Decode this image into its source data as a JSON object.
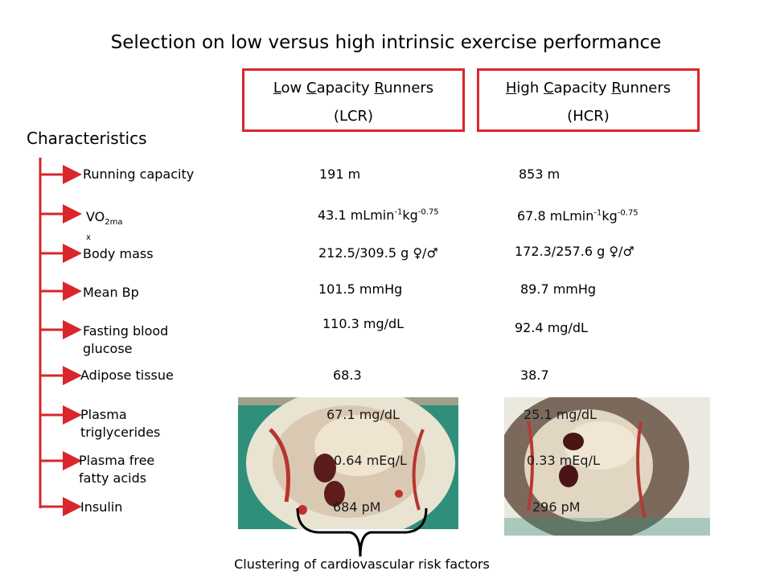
{
  "title": "Selection on low versus high intrinsic exercise performance",
  "lcr": {
    "l1a": "L",
    "l1b": "ow ",
    "l1c": "C",
    "l1d": "apacity ",
    "l1e": "R",
    "l1f": "unners",
    "abbr": "(LCR)"
  },
  "hcr": {
    "l1a": "H",
    "l1b": "igh ",
    "l1c": "C",
    "l1d": "apacity ",
    "l1e": "R",
    "l1f": "unners",
    "abbr": "(HCR)"
  },
  "characteristics_heading": "Characteristics",
  "rows": {
    "running": {
      "label": "Running capacity",
      "lcr": "191 m",
      "hcr": "853 m"
    },
    "vo2": {
      "label_main": "VO",
      "label_sub": "2ma",
      "label_x": "x",
      "lcr_main": "43.1 mLmin",
      "lcr_sup1": "-1",
      "lcr_mid": "kg",
      "lcr_sup2": "-0.75",
      "hcr_main": "67.8 mLmin",
      "hcr_sup1": "-1",
      "hcr_mid": "kg",
      "hcr_sup2": "-0.75"
    },
    "body_mass": {
      "label": "Body mass",
      "lcr": "212.5/309.5 g ♀/♂",
      "hcr": "172.3/257.6 g ♀/♂"
    },
    "bp": {
      "label": "Mean Bp",
      "lcr": "101.5 mmHg",
      "hcr": "89.7 mmHg"
    },
    "glucose": {
      "label": "Fasting blood glucose",
      "lcr": "110.3 mg/dL",
      "hcr": "92.4 mg/dL"
    },
    "adipose": {
      "label": "Adipose tissue",
      "lcr": "68.3",
      "hcr": "38.7"
    },
    "trig": {
      "label": "Plasma triglycerides",
      "lcr": "67.1 mg/dL",
      "hcr": "25.1 mg/dL"
    },
    "ffa": {
      "label": "Plasma free fatty acids",
      "lcr": "0.64 mEq/L",
      "hcr": "0.33 mEq/L"
    },
    "insulin": {
      "label": "Insulin",
      "lcr": "684 pM",
      "hcr": "296 pM"
    }
  },
  "caption": "Clustering of cardiovascular risk factors",
  "colors": {
    "accent": "#d9262c",
    "photo_bg": "#2f8f7a"
  }
}
